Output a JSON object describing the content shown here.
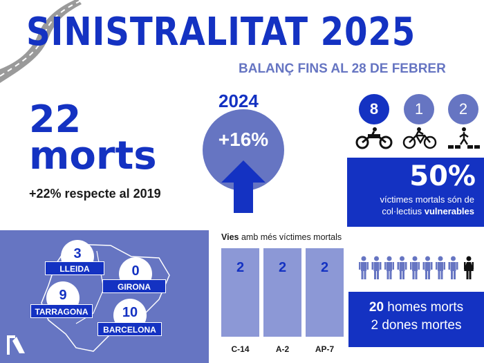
{
  "header": {
    "title": "SINISTRALITAT 2025",
    "subtitle": "BALANÇ FINS AL 28 DE FEBRER"
  },
  "deaths": {
    "count": "22",
    "word": "morts",
    "comparison": "+22% respecte al 2019"
  },
  "previous_year": {
    "year": "2024",
    "change": "+16%",
    "direction": "up"
  },
  "vulnerable": {
    "users": [
      {
        "count": "8",
        "icon": "motorcycle-icon"
      },
      {
        "count": "1",
        "icon": "bicycle-icon"
      },
      {
        "count": "2",
        "icon": "pedestrian-icon"
      }
    ],
    "percent": "50%",
    "line1": "víctimes mortals són de",
    "line2_prefix": "col·lectius",
    "line2_bold": "vulnerables"
  },
  "provinces": [
    {
      "name": "LLEIDA",
      "deaths": "3"
    },
    {
      "name": "GIRONA",
      "deaths": "0"
    },
    {
      "name": "TARRAGONA",
      "deaths": "9"
    },
    {
      "name": "BARCELONA",
      "deaths": "10"
    }
  ],
  "roads": {
    "title_bold": "Vies",
    "title_rest": "amb més víctimes mortals"
  },
  "chart_data": {
    "type": "bar",
    "title": "Vies amb més víctimes mortals",
    "categories": [
      "C-14",
      "A-2",
      "AP-7"
    ],
    "values": [
      2,
      2,
      2
    ],
    "xlabel": "",
    "ylabel": ""
  },
  "gender": {
    "men_count": "20",
    "men_text": "homes morts",
    "women_text": "2 dones mortes",
    "men_icons": 8,
    "women_icons": 1
  },
  "colors": {
    "primary": "#1432c2",
    "secondary": "#6675c2",
    "bar": "#8c98d6",
    "text_dark": "#1a1a1a"
  }
}
